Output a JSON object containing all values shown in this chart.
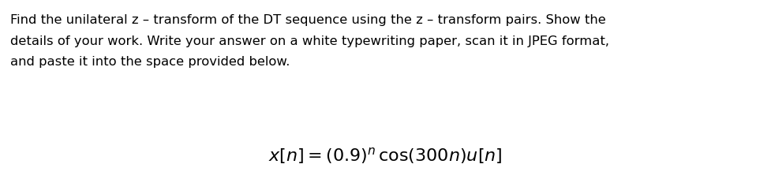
{
  "background_color": "#ffffff",
  "line1": "Find the unilateral z – transform of the DT sequence using the z – transform pairs. Show the",
  "line2": "details of your work. Write your answer on a white typewriting paper, scan it in JPEG format,",
  "line3": "and paste it into the space provided below.",
  "para_fontsize": 11.8,
  "formula_fontsize": 16,
  "text_color": "#000000",
  "fig_width": 9.77,
  "fig_height": 2.28,
  "dpi": 100
}
